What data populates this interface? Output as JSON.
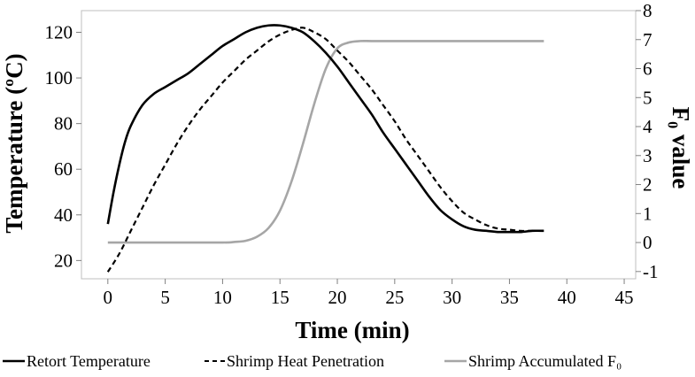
{
  "chart_data": {
    "type": "line",
    "xlabel": "Time (min)",
    "ylabel_left": "Temperature (ºC)",
    "ylabel_right": "F₀ value",
    "xlim": [
      -2.3,
      46
    ],
    "ylim_left": [
      12,
      129.5
    ],
    "ylim_right": [
      -1.25,
      8
    ],
    "x_ticks": [
      0,
      5,
      10,
      15,
      20,
      25,
      30,
      35,
      40,
      45
    ],
    "y_ticks_left": [
      20,
      40,
      60,
      80,
      100,
      120
    ],
    "y_ticks_right": [
      -1,
      0,
      1,
      2,
      3,
      4,
      5,
      6,
      7,
      8
    ],
    "grid": false,
    "legend_position": "bottom",
    "series": [
      {
        "name": "Retort Temperature",
        "axis": "left",
        "color": "#000000",
        "dash": "solid",
        "x": [
          0,
          0.5,
          1,
          1.5,
          2,
          3,
          4,
          5,
          6,
          7,
          8,
          9,
          10,
          11,
          12,
          13,
          14,
          15,
          16,
          17,
          18,
          19,
          20,
          21,
          22,
          23,
          24,
          25,
          26,
          27,
          28,
          29,
          30,
          31,
          32,
          33,
          34,
          35,
          36,
          37,
          38
        ],
        "values": [
          36,
          50,
          62,
          72,
          79,
          88,
          93,
          96,
          99,
          102,
          106,
          110,
          114,
          117,
          120,
          122,
          123,
          123,
          122,
          120,
          116,
          111,
          105,
          98,
          91,
          84,
          76,
          69,
          62,
          55,
          48,
          42,
          38,
          35,
          33.5,
          33,
          32.5,
          32.5,
          32.5,
          33,
          33
        ]
      },
      {
        "name": "Shrimp Heat Penetration",
        "axis": "left",
        "color": "#000000",
        "dash": "dashed",
        "x": [
          0,
          1,
          2,
          3,
          4,
          5,
          6,
          7,
          8,
          9,
          10,
          11,
          12,
          13,
          14,
          15,
          16,
          17,
          18,
          19,
          20,
          21,
          22,
          23,
          24,
          25,
          26,
          27,
          28,
          29,
          30,
          31,
          32,
          33,
          34,
          35,
          36,
          37,
          38
        ],
        "values": [
          15,
          23,
          33,
          43,
          53,
          62,
          71,
          79,
          86,
          92,
          98,
          103,
          108,
          112,
          116,
          119,
          121,
          122,
          120,
          117,
          112,
          107,
          101,
          95,
          88,
          81,
          73,
          66,
          59,
          52,
          46,
          41,
          38,
          35.5,
          34,
          33.5,
          33,
          33,
          33
        ]
      },
      {
        "name": "Shrimp Accumulated F₀",
        "axis": "right",
        "color": "#a6a6a6",
        "dash": "solid",
        "x": [
          0,
          5,
          10,
          11,
          12,
          13,
          14,
          15,
          16,
          17,
          18,
          19,
          20,
          21,
          22,
          23,
          25,
          30,
          35,
          38
        ],
        "values": [
          0,
          0,
          0,
          0.02,
          0.06,
          0.2,
          0.5,
          1.1,
          2.1,
          3.4,
          4.8,
          6.0,
          6.7,
          6.9,
          6.95,
          6.95,
          6.95,
          6.95,
          6.95,
          6.95
        ]
      }
    ]
  }
}
